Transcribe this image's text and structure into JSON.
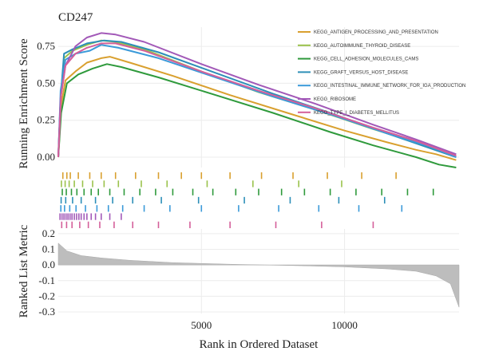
{
  "chart_data": {
    "type": "line",
    "title": "CD247",
    "xlabel": "Rank in Ordered Dataset",
    "es_ylabel": "Running Enrichment Score",
    "rank_ylabel": "Ranked List Metric",
    "xlim": [
      0,
      14000
    ],
    "x_ticks": [
      {
        "value": 5000,
        "label": "5000"
      },
      {
        "value": 10000,
        "label": "10000"
      }
    ],
    "es_ylim": [
      -0.07,
      0.88
    ],
    "es_ticks": [
      {
        "value": 0.0,
        "label": "0.00"
      },
      {
        "value": 0.25,
        "label": "0.25"
      },
      {
        "value": 0.5,
        "label": "0.50"
      },
      {
        "value": 0.75,
        "label": "0.75"
      }
    ],
    "rank_ylim": [
      -0.31,
      0.23
    ],
    "rank_ticks": [
      {
        "value": 0.2,
        "label": "0.2"
      },
      {
        "value": 0.1,
        "label": "0.1"
      },
      {
        "value": 0.0,
        "label": "0.0"
      },
      {
        "value": -0.1,
        "label": "-0.1"
      },
      {
        "value": -0.2,
        "label": "-0.2"
      },
      {
        "value": -0.3,
        "label": "-0.3"
      }
    ],
    "grid": true,
    "legend_position": "top-right",
    "series": [
      {
        "name": "KEGG_ANTIGEN_PROCESSING_AND_PRESENTATION",
        "color": "#d9a02f",
        "points": [
          [
            0,
            0.0
          ],
          [
            100,
            0.35
          ],
          [
            250,
            0.52
          ],
          [
            600,
            0.58
          ],
          [
            1000,
            0.64
          ],
          [
            1500,
            0.67
          ],
          [
            1800,
            0.68
          ],
          [
            2500,
            0.64
          ],
          [
            4000,
            0.55
          ],
          [
            6000,
            0.42
          ],
          [
            8000,
            0.3
          ],
          [
            10000,
            0.18
          ],
          [
            11500,
            0.1
          ],
          [
            12500,
            0.05
          ],
          [
            13200,
            0.02
          ],
          [
            13900,
            -0.02
          ]
        ],
        "hits": [
          160,
          300,
          420,
          700,
          1100,
          1500,
          2000,
          2700,
          3500,
          4300,
          5000,
          6000,
          7100,
          8200,
          9400,
          10600,
          11800
        ]
      },
      {
        "name": "KEGG_AUTOIMMUNE_THYROID_DISEASE",
        "color": "#9ac24b",
        "points": [
          [
            0,
            0.0
          ],
          [
            80,
            0.4
          ],
          [
            200,
            0.67
          ],
          [
            500,
            0.72
          ],
          [
            1000,
            0.76
          ],
          [
            1500,
            0.79
          ],
          [
            2000,
            0.78
          ],
          [
            3000,
            0.73
          ],
          [
            5000,
            0.58
          ],
          [
            7000,
            0.44
          ],
          [
            9000,
            0.32
          ],
          [
            11000,
            0.19
          ],
          [
            12500,
            0.1
          ],
          [
            13900,
            0.01
          ]
        ],
        "hits": [
          110,
          240,
          380,
          560,
          850,
          1200,
          1600,
          2100,
          2900,
          3800,
          5200,
          6800,
          8400,
          9900
        ]
      },
      {
        "name": "KEGG_CELL_ADHESION_MOLECULES_CAMS",
        "color": "#2f9a3c",
        "points": [
          [
            0,
            0.0
          ],
          [
            100,
            0.3
          ],
          [
            300,
            0.5
          ],
          [
            700,
            0.56
          ],
          [
            1200,
            0.6
          ],
          [
            1700,
            0.63
          ],
          [
            2200,
            0.61
          ],
          [
            3500,
            0.54
          ],
          [
            5500,
            0.42
          ],
          [
            7500,
            0.3
          ],
          [
            9500,
            0.17
          ],
          [
            11000,
            0.08
          ],
          [
            12500,
            0.0
          ],
          [
            13300,
            -0.05
          ],
          [
            13900,
            -0.07
          ]
        ],
        "hits": [
          140,
          280,
          460,
          650,
          900,
          1150,
          1400,
          1800,
          2300,
          2850,
          3400,
          4000,
          4700,
          5400,
          6200,
          7000,
          7800,
          8600,
          9500,
          10400,
          11300,
          12200,
          13100
        ]
      },
      {
        "name": "KEGG_GRAFT_VERSUS_HOST_DISEASE",
        "color": "#2d8fb8",
        "points": [
          [
            0,
            0.0
          ],
          [
            80,
            0.4
          ],
          [
            200,
            0.7
          ],
          [
            500,
            0.73
          ],
          [
            1000,
            0.77
          ],
          [
            1600,
            0.79
          ],
          [
            2200,
            0.78
          ],
          [
            3500,
            0.71
          ],
          [
            5500,
            0.57
          ],
          [
            7500,
            0.43
          ],
          [
            9500,
            0.3
          ],
          [
            11500,
            0.16
          ],
          [
            13000,
            0.06
          ],
          [
            13900,
            0.0
          ]
        ],
        "hits": [
          100,
          260,
          500,
          800,
          1300,
          1900,
          2600,
          3600,
          4900,
          6500,
          8100,
          9800,
          11400
        ]
      },
      {
        "name": "KEGG_INTESTINAL_IMMUNE_NETWORK_FOR_IGA_PRODUCTION",
        "color": "#3b9ad9",
        "points": [
          [
            0,
            0.0
          ],
          [
            80,
            0.45
          ],
          [
            250,
            0.66
          ],
          [
            600,
            0.7
          ],
          [
            1100,
            0.72
          ],
          [
            1500,
            0.76
          ],
          [
            2100,
            0.74
          ],
          [
            3500,
            0.67
          ],
          [
            5500,
            0.54
          ],
          [
            7500,
            0.41
          ],
          [
            9500,
            0.29
          ],
          [
            11500,
            0.16
          ],
          [
            13000,
            0.07
          ],
          [
            13900,
            0.0
          ]
        ],
        "hits": [
          90,
          220,
          400,
          620,
          950,
          1350,
          1750,
          2250,
          3000,
          3900,
          5000,
          6300,
          7700,
          9100,
          10500,
          12000
        ]
      },
      {
        "name": "KEGG_RIBOSOME",
        "color": "#a259b8",
        "points": [
          [
            0,
            0.0
          ],
          [
            80,
            0.4
          ],
          [
            250,
            0.62
          ],
          [
            600,
            0.75
          ],
          [
            1000,
            0.81
          ],
          [
            1500,
            0.84
          ],
          [
            2000,
            0.83
          ],
          [
            3000,
            0.78
          ],
          [
            5000,
            0.63
          ],
          [
            7000,
            0.49
          ],
          [
            9000,
            0.36
          ],
          [
            11000,
            0.22
          ],
          [
            12500,
            0.12
          ],
          [
            13900,
            0.02
          ]
        ],
        "hits": [
          60,
          130,
          200,
          270,
          340,
          410,
          480,
          560,
          640,
          720,
          800,
          900,
          1000,
          1150,
          1300,
          1500,
          1800,
          2200
        ]
      },
      {
        "name": "KEGG_TYPE_I_DIABETES_MELLITUS",
        "color": "#d45f9a",
        "points": [
          [
            0,
            0.0
          ],
          [
            100,
            0.42
          ],
          [
            250,
            0.62
          ],
          [
            600,
            0.7
          ],
          [
            1000,
            0.74
          ],
          [
            1500,
            0.77
          ],
          [
            2000,
            0.77
          ],
          [
            3000,
            0.72
          ],
          [
            5000,
            0.58
          ],
          [
            7000,
            0.45
          ],
          [
            9000,
            0.33
          ],
          [
            11000,
            0.2
          ],
          [
            12500,
            0.11
          ],
          [
            13900,
            0.01
          ]
        ],
        "hits": [
          120,
          290,
          480,
          750,
          1050,
          1450,
          1950,
          2600,
          3500,
          4600,
          6000,
          7600,
          9200,
          11000
        ]
      }
    ],
    "ranked_metric": {
      "color": "#bdbdbd",
      "points": [
        [
          0,
          0.14
        ],
        [
          300,
          0.09
        ],
        [
          800,
          0.06
        ],
        [
          1500,
          0.045
        ],
        [
          2500,
          0.03
        ],
        [
          4000,
          0.015
        ],
        [
          6000,
          0.005
        ],
        [
          7200,
          0.0
        ],
        [
          8500,
          -0.005
        ],
        [
          10000,
          -0.012
        ],
        [
          11500,
          -0.025
        ],
        [
          12500,
          -0.04
        ],
        [
          13200,
          -0.07
        ],
        [
          13700,
          -0.12
        ],
        [
          14000,
          -0.27
        ]
      ]
    }
  }
}
